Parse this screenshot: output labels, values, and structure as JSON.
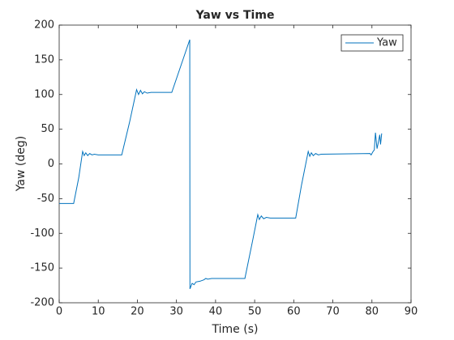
{
  "chart_data": {
    "type": "line",
    "title": "Yaw vs Time",
    "xlabel": "Time (s)",
    "ylabel": "Yaw (deg)",
    "x": [
      0,
      3.7,
      5.0,
      6.0,
      6.4,
      6.8,
      7.3,
      7.8,
      8.4,
      9,
      10,
      16,
      18,
      19.8,
      20.3,
      20.8,
      21.3,
      21.8,
      22.5,
      23.5,
      28.8,
      33.4,
      33.45,
      34.0,
      34.5,
      35,
      36,
      37,
      37.5,
      38,
      39,
      47.5,
      49.5,
      50.8,
      51.2,
      51.7,
      52.3,
      53,
      54,
      60.5,
      62,
      63.7,
      64.1,
      64.5,
      65,
      65.6,
      66.3,
      67,
      79.5,
      79.8,
      80.3,
      80.6,
      80.9,
      81.3,
      81.6,
      82.0,
      82.2,
      82.5
    ],
    "series": [
      {
        "name": "Yaw",
        "color": "#0072bd",
        "values": [
          -57,
          -57,
          -20,
          18,
          12,
          16,
          12,
          15,
          13,
          14,
          13,
          13,
          60,
          107,
          100,
          106,
          101,
          104,
          102,
          103,
          103,
          179,
          -180,
          -172,
          -174,
          -170,
          -169,
          -167,
          -165,
          -166,
          -165,
          -165,
          -110,
          -73,
          -80,
          -75,
          -79,
          -77,
          -78,
          -78,
          -30,
          18,
          11,
          16,
          12,
          15,
          13,
          14,
          15,
          13,
          18,
          20,
          45,
          22,
          30,
          42,
          28,
          44
        ]
      }
    ],
    "xlim": [
      0,
      90
    ],
    "xticks": [
      0,
      10,
      20,
      30,
      40,
      50,
      60,
      70,
      80,
      90
    ],
    "ylim": [
      -200,
      200
    ],
    "yticks": [
      -200,
      -150,
      -100,
      -50,
      0,
      50,
      100,
      150,
      200
    ],
    "grid": false,
    "legend": "northeast"
  }
}
